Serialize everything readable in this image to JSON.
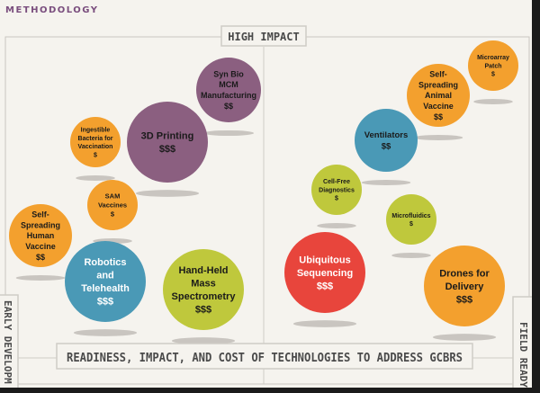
{
  "header": {
    "label": "METHODOLOGY"
  },
  "chart_data": {
    "type": "bubble",
    "title": "READINESS, IMPACT, AND COST OF TECHNOLOGIES TO ADDRESS GCBRS",
    "y_axis_top_label": "HIGH IMPACT",
    "x_axis_left_label": "EARLY DEVELOPM",
    "x_axis_right_label": "FIELD READY",
    "cost_scale": [
      "$",
      "$$",
      "$$$"
    ],
    "points": [
      {
        "lines": [
          "Syn Bio",
          "MCM",
          "Manufacturing"
        ],
        "cost": "$$",
        "color": "#8b5f80"
      },
      {
        "lines": [
          "3D Printing"
        ],
        "cost": "$$$",
        "color": "#8b5f80"
      },
      {
        "lines": [
          "Ingestible",
          "Bacteria for",
          "Vaccination"
        ],
        "cost": "$",
        "color": "#f3a02e"
      },
      {
        "lines": [
          "SAM",
          "Vaccines"
        ],
        "cost": "$",
        "color": "#f3a02e"
      },
      {
        "lines": [
          "Self-",
          "Spreading",
          "Human",
          "Vaccine"
        ],
        "cost": "$$",
        "color": "#f3a02e"
      },
      {
        "lines": [
          "Robotics",
          "and",
          "Telehealth"
        ],
        "cost": "$$$",
        "color": "#4a99b6"
      },
      {
        "lines": [
          "Hand-Held",
          "Mass",
          "Spectrometry"
        ],
        "cost": "$$$",
        "color": "#bfc83c"
      },
      {
        "lines": [
          "Microarray",
          "Patch"
        ],
        "cost": "$",
        "color": "#f3a02e"
      },
      {
        "lines": [
          "Self-",
          "Spreading",
          "Animal",
          "Vaccine"
        ],
        "cost": "$$",
        "color": "#f3a02e"
      },
      {
        "lines": [
          "Ventilators"
        ],
        "cost": "$$",
        "color": "#4a99b6"
      },
      {
        "lines": [
          "Cell-Free",
          "Diagnostics"
        ],
        "cost": "$",
        "color": "#bfc83c"
      },
      {
        "lines": [
          "Microfluidics"
        ],
        "cost": "$",
        "color": "#bfc83c"
      },
      {
        "lines": [
          "Ubiquitous",
          "Sequencing"
        ],
        "cost": "$$$",
        "color": "#e8453c"
      },
      {
        "lines": [
          "Drones for",
          "Delivery"
        ],
        "cost": "$$$",
        "color": "#f3a02e"
      }
    ]
  }
}
